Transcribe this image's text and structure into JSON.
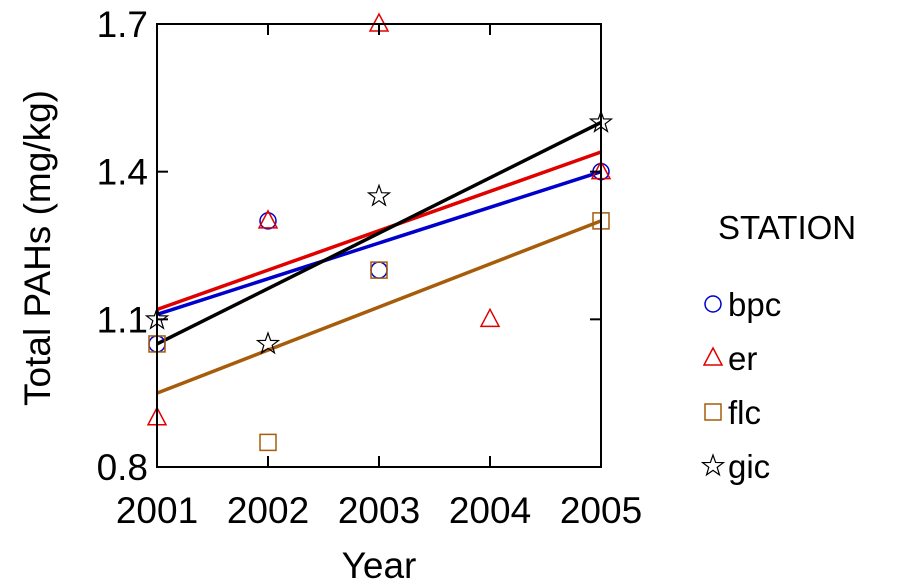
{
  "chart_data": {
    "type": "scatter",
    "title": "",
    "xlabel": "Year",
    "ylabel": "Total PAHs (mg/kg)",
    "xlim": [
      2001,
      2005
    ],
    "ylim": [
      0.8,
      1.7
    ],
    "xticks": [
      2001,
      2002,
      2003,
      2004,
      2005
    ],
    "xtick_labels": [
      "2001",
      "2002",
      "2003",
      "2004",
      "2005"
    ],
    "yticks": [
      0.8,
      1.1,
      1.4,
      1.7
    ],
    "ytick_labels": [
      "0.8",
      "1.1",
      "1.4",
      "1.7"
    ],
    "grid": false,
    "legend": {
      "title": "STATION",
      "placement": "right"
    },
    "series": [
      {
        "name": "bpc",
        "color": "#0000cc",
        "marker": "circle",
        "points": [
          {
            "x": 2001,
            "y": 1.05
          },
          {
            "x": 2002,
            "y": 1.3
          },
          {
            "x": 2003,
            "y": 1.2
          },
          {
            "x": 2005,
            "y": 1.4
          }
        ],
        "trendline": {
          "start": [
            2001,
            1.11
          ],
          "end": [
            2005,
            1.4
          ]
        }
      },
      {
        "name": "er",
        "color": "#e00000",
        "marker": "triangle",
        "points": [
          {
            "x": 2001,
            "y": 0.9
          },
          {
            "x": 2002,
            "y": 1.3
          },
          {
            "x": 2003,
            "y": 1.7
          },
          {
            "x": 2004,
            "y": 1.1
          },
          {
            "x": 2005,
            "y": 1.4
          }
        ],
        "trendline": {
          "start": [
            2001,
            1.12
          ],
          "end": [
            2005,
            1.44
          ]
        }
      },
      {
        "name": "flc",
        "color": "#a65c0a",
        "marker": "square",
        "points": [
          {
            "x": 2001,
            "y": 1.05
          },
          {
            "x": 2002,
            "y": 0.85
          },
          {
            "x": 2003,
            "y": 1.2
          },
          {
            "x": 2005,
            "y": 1.3
          }
        ],
        "trendline": {
          "start": [
            2001,
            0.95
          ],
          "end": [
            2005,
            1.3
          ]
        }
      },
      {
        "name": "gic",
        "color": "#000000",
        "marker": "star",
        "points": [
          {
            "x": 2001,
            "y": 1.1
          },
          {
            "x": 2002,
            "y": 1.05
          },
          {
            "x": 2003,
            "y": 1.35
          },
          {
            "x": 2005,
            "y": 1.5
          }
        ],
        "trendline": {
          "start": [
            2001,
            1.05
          ],
          "end": [
            2005,
            1.5
          ]
        }
      }
    ]
  }
}
